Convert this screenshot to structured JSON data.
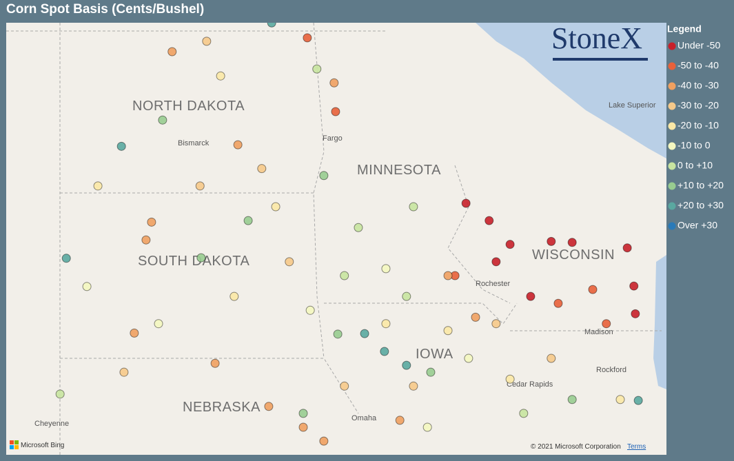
{
  "header": {
    "title": "Corn Spot Basis (Cents/Bushel)"
  },
  "legend": {
    "title": "Legend",
    "items": [
      {
        "label": "Under -50",
        "color": "#c8202a"
      },
      {
        "label": "-50 to -40",
        "color": "#e8613a"
      },
      {
        "label": "-40 to -30",
        "color": "#f0a060"
      },
      {
        "label": "-30 to -20",
        "color": "#f6c98a"
      },
      {
        "label": "-20 to -10",
        "color": "#fbe8a6"
      },
      {
        "label": "-10 to 0",
        "color": "#f4f7c0"
      },
      {
        "label": "0 to +10",
        "color": "#c8e4a0"
      },
      {
        "label": "+10 to +20",
        "color": "#98cc90"
      },
      {
        "label": "+20 to +30",
        "color": "#5aa8a0"
      },
      {
        "label": "Over +30",
        "color": "#2a7ab8"
      }
    ]
  },
  "map": {
    "logo": "StoneX",
    "labels": {
      "north_dakota": "NORTH DAKOTA",
      "south_dakota": "SOUTH DAKOTA",
      "minnesota": "MINNESOTA",
      "wisconsin": "WISCONSIN",
      "nebraska": "NEBRASKA",
      "iowa": "IOWA",
      "bismarck": "Bismarck",
      "fargo": "Fargo",
      "rochester": "Rochester",
      "madison": "Madison",
      "cedar_rapids": "Cedar Rapids",
      "omaha": "Omaha",
      "cheyenne": "Cheyenne",
      "rockford": "Rockford",
      "lake_superior": "Lake Superior"
    },
    "provider": "Microsoft Bing",
    "copyright": "© 2021 Microsoft Corporation",
    "terms": "Terms",
    "points": [
      {
        "lon": -93.01,
        "lat": 45.6,
        "legend": 0
      },
      {
        "lon": -92.38,
        "lat": 45.25,
        "legend": 0
      },
      {
        "lon": -91.81,
        "lat": 44.77,
        "legend": 0
      },
      {
        "lon": -90.69,
        "lat": 44.83,
        "legend": 0
      },
      {
        "lon": -90.12,
        "lat": 44.81,
        "legend": 0
      },
      {
        "lon": -88.62,
        "lat": 44.7,
        "legend": 0
      },
      {
        "lon": -88.44,
        "lat": 43.93,
        "legend": 0
      },
      {
        "lon": -88.4,
        "lat": 43.37,
        "legend": 0
      },
      {
        "lon": -91.25,
        "lat": 43.72,
        "legend": 0
      },
      {
        "lon": -92.19,
        "lat": 44.42,
        "legend": 0
      },
      {
        "lon": -89.19,
        "lat": 43.17,
        "legend": 1
      },
      {
        "lon": -90.5,
        "lat": 43.58,
        "legend": 1
      },
      {
        "lon": -93.31,
        "lat": 44.14,
        "legend": 1
      },
      {
        "lon": -89.56,
        "lat": 43.86,
        "legend": 1
      },
      {
        "lon": -97.33,
        "lat": 48.94,
        "legend": 1
      },
      {
        "lon": -96.56,
        "lat": 47.45,
        "legend": 1
      },
      {
        "lon": -101.57,
        "lat": 45.22,
        "legend": 2
      },
      {
        "lon": -101.72,
        "lat": 44.86,
        "legend": 2
      },
      {
        "lon": -102.04,
        "lat": 42.98,
        "legend": 2
      },
      {
        "lon": -99.84,
        "lat": 42.37,
        "legend": 2
      },
      {
        "lon": -97.44,
        "lat": 41.08,
        "legend": 2
      },
      {
        "lon": -96.88,
        "lat": 40.8,
        "legend": 2
      },
      {
        "lon": -94.81,
        "lat": 41.22,
        "legend": 2
      },
      {
        "lon": -98.38,
        "lat": 41.5,
        "legend": 2
      },
      {
        "lon": -101.01,
        "lat": 48.66,
        "legend": 2
      },
      {
        "lon": -96.6,
        "lat": 48.03,
        "legend": 2
      },
      {
        "lon": -93.5,
        "lat": 44.14,
        "legend": 2
      },
      {
        "lon": -92.75,
        "lat": 43.3,
        "legend": 2
      },
      {
        "lon": -99.22,
        "lat": 46.78,
        "legend": 2
      },
      {
        "lon": -98.57,
        "lat": 46.3,
        "legend": 3
      },
      {
        "lon": -100.07,
        "lat": 48.87,
        "legend": 3
      },
      {
        "lon": -97.82,
        "lat": 44.42,
        "legend": 3
      },
      {
        "lon": -94.44,
        "lat": 41.91,
        "legend": 3
      },
      {
        "lon": -96.32,
        "lat": 41.91,
        "legend": 3
      },
      {
        "lon": -102.32,
        "lat": 42.19,
        "legend": 3
      },
      {
        "lon": -100.25,
        "lat": 45.95,
        "legend": 3
      },
      {
        "lon": -90.69,
        "lat": 42.47,
        "legend": 3
      },
      {
        "lon": -92.19,
        "lat": 43.17,
        "legend": 3
      },
      {
        "lon": -103.03,
        "lat": 45.95,
        "legend": 4
      },
      {
        "lon": -99.69,
        "lat": 48.17,
        "legend": 4
      },
      {
        "lon": -98.19,
        "lat": 45.53,
        "legend": 4
      },
      {
        "lon": -93.5,
        "lat": 43.03,
        "legend": 4
      },
      {
        "lon": -91.81,
        "lat": 42.05,
        "legend": 4
      },
      {
        "lon": -95.19,
        "lat": 43.17,
        "legend": 4
      },
      {
        "lon": -88.81,
        "lat": 41.64,
        "legend": 4
      },
      {
        "lon": -99.32,
        "lat": 43.72,
        "legend": 4
      },
      {
        "lon": -103.33,
        "lat": 43.92,
        "legend": 5
      },
      {
        "lon": -101.38,
        "lat": 43.17,
        "legend": 5
      },
      {
        "lon": -95.19,
        "lat": 44.28,
        "legend": 5
      },
      {
        "lon": -92.94,
        "lat": 42.47,
        "legend": 5
      },
      {
        "lon": -94.06,
        "lat": 41.08,
        "legend": 5
      },
      {
        "lon": -97.25,
        "lat": 43.44,
        "legend": 5
      },
      {
        "lon": -95.94,
        "lat": 45.11,
        "legend": 6
      },
      {
        "lon": -94.63,
        "lat": 43.72,
        "legend": 6
      },
      {
        "lon": -104.06,
        "lat": 41.75,
        "legend": 6
      },
      {
        "lon": -91.44,
        "lat": 41.36,
        "legend": 6
      },
      {
        "lon": -96.32,
        "lat": 44.14,
        "legend": 6
      },
      {
        "lon": -97.07,
        "lat": 48.31,
        "legend": 6
      },
      {
        "lon": -94.44,
        "lat": 45.53,
        "legend": 6
      },
      {
        "lon": -101.27,
        "lat": 47.28,
        "legend": 7
      },
      {
        "lon": -100.22,
        "lat": 44.5,
        "legend": 7
      },
      {
        "lon": -96.5,
        "lat": 42.96,
        "legend": 7
      },
      {
        "lon": -93.97,
        "lat": 42.19,
        "legend": 7
      },
      {
        "lon": -97.44,
        "lat": 41.36,
        "legend": 7
      },
      {
        "lon": -90.12,
        "lat": 41.64,
        "legend": 7
      },
      {
        "lon": -98.94,
        "lat": 45.25,
        "legend": 7
      },
      {
        "lon": -96.88,
        "lat": 46.16,
        "legend": 7
      },
      {
        "lon": -103.89,
        "lat": 44.49,
        "legend": 8
      },
      {
        "lon": -102.39,
        "lat": 46.75,
        "legend": 8
      },
      {
        "lon": -95.77,
        "lat": 42.97,
        "legend": 8
      },
      {
        "lon": -94.63,
        "lat": 42.33,
        "legend": 8
      },
      {
        "lon": -98.3,
        "lat": 49.24,
        "legend": 8
      },
      {
        "lon": -88.32,
        "lat": 41.62,
        "legend": 8
      },
      {
        "lon": -95.23,
        "lat": 42.61,
        "legend": 8
      }
    ]
  }
}
